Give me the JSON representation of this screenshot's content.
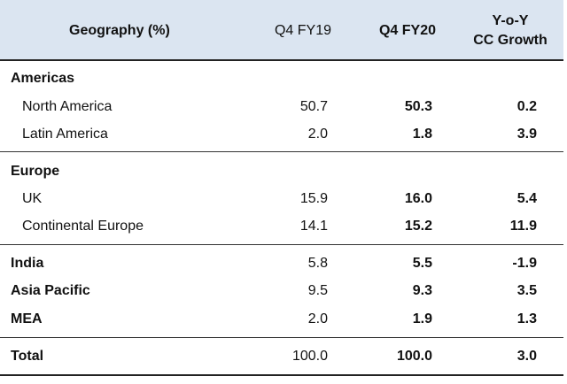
{
  "header": {
    "geography": "Geography (%)",
    "q4fy19": "Q4 FY19",
    "q4fy20": "Q4 FY20",
    "cc_line1": "Y-o-Y",
    "cc_line2": "CC Growth"
  },
  "groups": [
    {
      "name": "Americas",
      "rows": [
        {
          "label": "North America",
          "q4fy19": "50.7",
          "q4fy20": "50.3",
          "cc": "0.2"
        },
        {
          "label": "Latin America",
          "q4fy19": "2.0",
          "q4fy20": "1.8",
          "cc": "3.9"
        }
      ]
    },
    {
      "name": "Europe",
      "rows": [
        {
          "label": "UK",
          "q4fy19": "15.9",
          "q4fy20": "16.0",
          "cc": "5.4"
        },
        {
          "label": "Continental Europe",
          "q4fy19": "14.1",
          "q4fy20": "15.2",
          "cc": "11.9"
        }
      ]
    }
  ],
  "standalone": [
    {
      "label": "India",
      "q4fy19": "5.8",
      "q4fy20": "5.5",
      "cc": "-1.9"
    },
    {
      "label": "Asia Pacific",
      "q4fy19": "9.5",
      "q4fy20": "9.3",
      "cc": "3.5"
    },
    {
      "label": "MEA",
      "q4fy19": "2.0",
      "q4fy20": "1.9",
      "cc": "1.3"
    }
  ],
  "total": {
    "label": "Total",
    "q4fy19": "100.0",
    "q4fy20": "100.0",
    "cc": "3.0"
  }
}
